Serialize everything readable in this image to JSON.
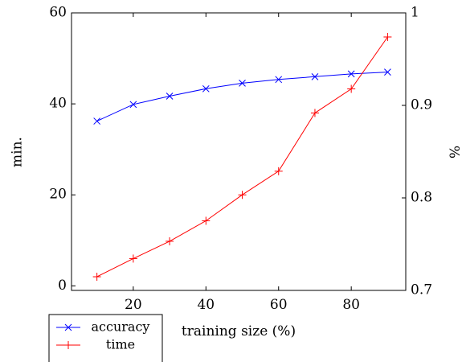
{
  "chart_data": {
    "type": "line",
    "title": "",
    "xlabel": "training size (%)",
    "ylabel_left": "min.",
    "ylabel_right": "%",
    "x_range": [
      3,
      95
    ],
    "y_left_range": [
      -1,
      60
    ],
    "y_right_range": [
      0.7,
      1.0
    ],
    "x_ticks": [
      20,
      40,
      60,
      80
    ],
    "x_tick_labels": [
      "20",
      "40",
      "60",
      "80"
    ],
    "y_left_ticks": [
      0,
      20,
      40,
      60
    ],
    "y_left_tick_labels": [
      "0",
      "20",
      "40",
      "60"
    ],
    "y_right_ticks": [
      0.7,
      0.8,
      0.9,
      1.0
    ],
    "y_right_tick_labels": [
      "0.7",
      "0.8",
      "0.9",
      "1"
    ],
    "grid": false,
    "legend_position": "bottom-left-outside",
    "series": [
      {
        "name": "accuracy",
        "axis": "right",
        "color": "#0000ff",
        "marker": "x",
        "x": [
          10,
          20,
          30,
          40,
          50,
          60,
          70,
          80,
          90
        ],
        "y": [
          0.883,
          0.901,
          0.91,
          0.918,
          0.924,
          0.928,
          0.931,
          0.934,
          0.936
        ]
      },
      {
        "name": "time",
        "axis": "left",
        "color": "#ff0000",
        "marker": "+",
        "x": [
          10,
          20,
          30,
          40,
          50,
          60,
          70,
          80,
          90
        ],
        "y": [
          2.0,
          6.0,
          9.8,
          14.3,
          20.0,
          25.2,
          38.0,
          43.3,
          54.7
        ]
      }
    ]
  }
}
